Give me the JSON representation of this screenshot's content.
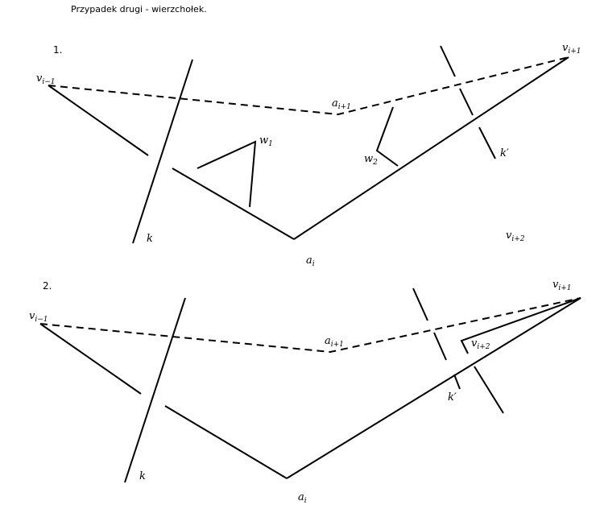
{
  "heading": "Przypadek drugi - wierzchołek.",
  "panels": [
    {
      "number": "1.",
      "labels": {
        "v_prev": {
          "base": "v",
          "sub": "i−1"
        },
        "a_next": {
          "base": "a",
          "sub": "i+1"
        },
        "v_next": {
          "base": "v",
          "sub": "i+1"
        },
        "w1": {
          "base": "w",
          "sub": "1"
        },
        "w2": {
          "base": "w",
          "sub": "2"
        },
        "k": {
          "base": "k",
          "sub": ""
        },
        "k_prime": {
          "base": "k′",
          "sub": ""
        },
        "v_next2": {
          "base": "v",
          "sub": "i+2"
        },
        "a_i": {
          "base": "a",
          "sub": "i"
        }
      }
    },
    {
      "number": "2.",
      "labels": {
        "v_prev": {
          "base": "v",
          "sub": "i−1"
        },
        "a_next": {
          "base": "a",
          "sub": "i+1"
        },
        "v_next": {
          "base": "v",
          "sub": "i+1"
        },
        "v_next2": {
          "base": "v",
          "sub": "i+2"
        },
        "k": {
          "base": "k",
          "sub": ""
        },
        "k_prime": {
          "base": "k′",
          "sub": ""
        },
        "a_i": {
          "base": "a",
          "sub": "i"
        }
      }
    }
  ]
}
